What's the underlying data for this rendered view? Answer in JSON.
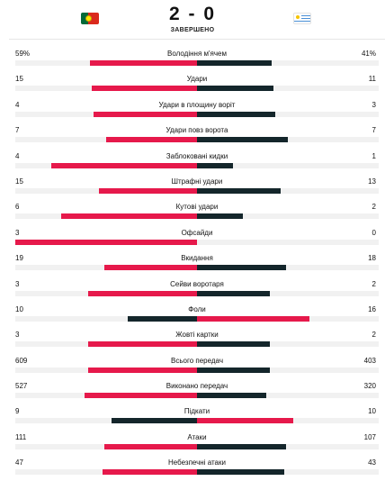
{
  "match": {
    "score": "2 - 0",
    "status": "ЗАВЕРШЕНО",
    "home_flag_icon": "portugal-flag-icon",
    "away_flag_icon": "uruguay-flag-icon"
  },
  "colors": {
    "leader": "#e6194b",
    "other": "#14262b",
    "track": "#f1f1f1"
  },
  "stats": [
    {
      "label": "Володіння м'ячем",
      "home": "59%",
      "away": "41%",
      "home_share": 0.59,
      "away_share": 0.41
    },
    {
      "label": "Удари",
      "home": "15",
      "away": "11",
      "home_share": 0.58,
      "away_share": 0.42
    },
    {
      "label": "Удари в площину воріт",
      "home": "4",
      "away": "3",
      "home_share": 0.57,
      "away_share": 0.43
    },
    {
      "label": "Удари повз ворота",
      "home": "7",
      "away": "7",
      "home_share": 0.5,
      "away_share": 0.5
    },
    {
      "label": "Заблоковані кидки",
      "home": "4",
      "away": "1",
      "home_share": 0.8,
      "away_share": 0.2
    },
    {
      "label": "Штрафні удари",
      "home": "15",
      "away": "13",
      "home_share": 0.54,
      "away_share": 0.46
    },
    {
      "label": "Кутові удари",
      "home": "6",
      "away": "2",
      "home_share": 0.75,
      "away_share": 0.25
    },
    {
      "label": "Офсайди",
      "home": "3",
      "away": "0",
      "home_share": 1.0,
      "away_share": 0.0
    },
    {
      "label": "Вкидання",
      "home": "19",
      "away": "18",
      "home_share": 0.51,
      "away_share": 0.49
    },
    {
      "label": "Сейви воротаря",
      "home": "3",
      "away": "2",
      "home_share": 0.6,
      "away_share": 0.4
    },
    {
      "label": "Фоли",
      "home": "10",
      "away": "16",
      "home_share": 0.38,
      "away_share": 0.62
    },
    {
      "label": "Жовті картки",
      "home": "3",
      "away": "2",
      "home_share": 0.6,
      "away_share": 0.4
    },
    {
      "label": "Всього передач",
      "home": "609",
      "away": "403",
      "home_share": 0.6,
      "away_share": 0.4
    },
    {
      "label": "Виконано передач",
      "home": "527",
      "away": "320",
      "home_share": 0.62,
      "away_share": 0.38
    },
    {
      "label": "Підкати",
      "home": "9",
      "away": "10",
      "home_share": 0.47,
      "away_share": 0.53
    },
    {
      "label": "Атаки",
      "home": "111",
      "away": "107",
      "home_share": 0.51,
      "away_share": 0.49
    },
    {
      "label": "Небезпечні атаки",
      "home": "47",
      "away": "43",
      "home_share": 0.52,
      "away_share": 0.48
    }
  ]
}
